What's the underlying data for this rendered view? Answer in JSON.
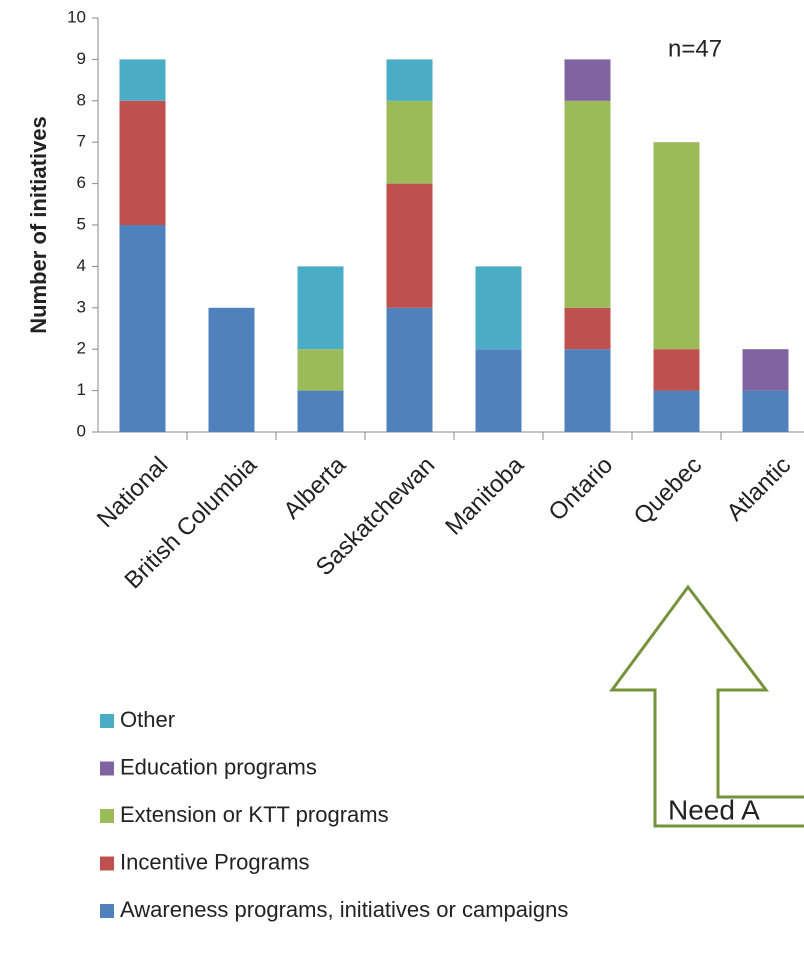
{
  "chart_data": {
    "type": "stacked_bar",
    "y_label": "Number of initiatives",
    "categories": [
      "National",
      "British Columbia",
      "Alberta",
      "Saskatchewan",
      "Manitoba",
      "Ontario",
      "Quebec",
      "Atlantic"
    ],
    "series": [
      {
        "name": "Awareness programs, initiatives or campaigns",
        "color": "#4f81bd",
        "values": [
          5,
          3,
          1,
          3,
          2,
          2,
          1,
          1
        ]
      },
      {
        "name": "Incentive Programs",
        "color": "#c0504d",
        "values": [
          3,
          0,
          0,
          3,
          0,
          1,
          1,
          0
        ]
      },
      {
        "name": "Extension or KTT programs",
        "color": "#9bbb59",
        "values": [
          0,
          0,
          1,
          2,
          0,
          5,
          5,
          0
        ]
      },
      {
        "name": "Education programs",
        "color": "#8064a2",
        "values": [
          0,
          0,
          0,
          0,
          0,
          1,
          0,
          1
        ]
      },
      {
        "name": "Other",
        "color": "#4bacc6",
        "values": [
          1,
          0,
          2,
          1,
          2,
          0,
          0,
          0
        ]
      }
    ],
    "ylim": [
      0,
      10
    ],
    "yticks": [
      0,
      1,
      2,
      3,
      4,
      5,
      6,
      7,
      8,
      9,
      10
    ],
    "annotations": [
      "n=47",
      "Need A"
    ]
  }
}
